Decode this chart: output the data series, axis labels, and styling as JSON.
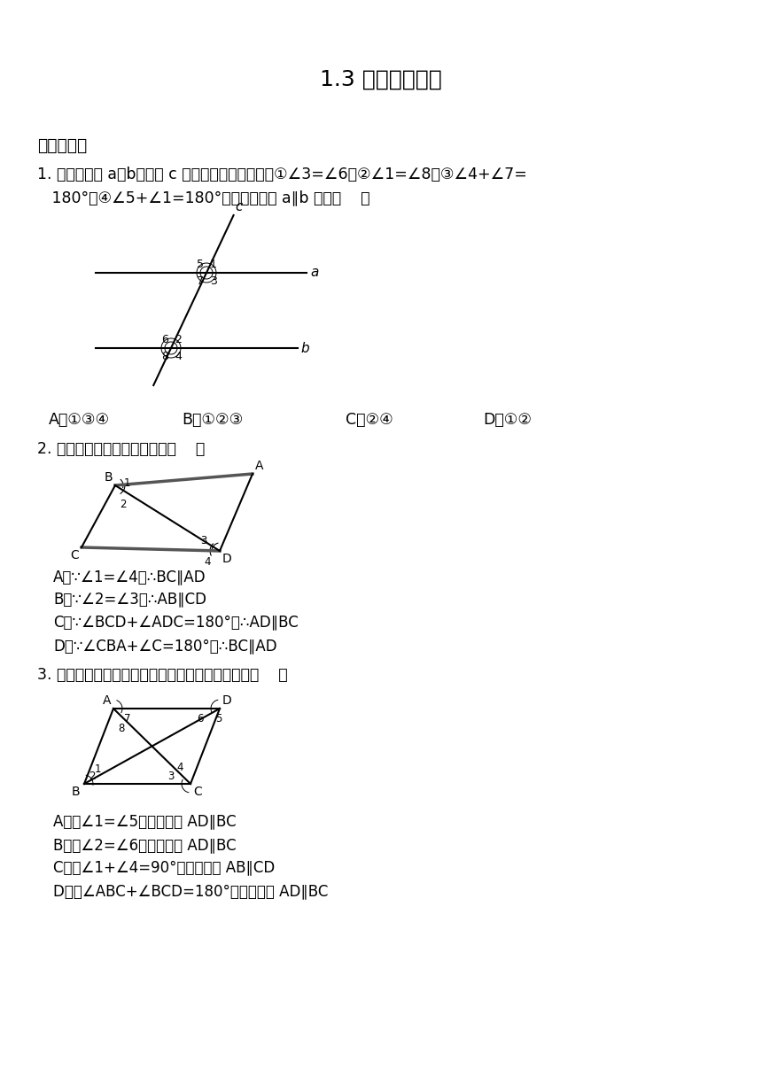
{
  "title": "1.3 平行线的判定",
  "section1": "一．选择题",
  "q1_line1": "1. 如图，直线 a、b被直线 c 所截，给出下列条件：①∠3=∠6；②∠1=∠8；③∠4+∠7=",
  "q1_line2": "   180°；④∠5+∠1=180°．其中能判断 a∥b 的是（    ）",
  "q1_opts": [
    "A．①③④",
    "B．①②③",
    "C．②④",
    "D．①②"
  ],
  "q2_line1": "2. 如图，下列推理中正确的是（    ）",
  "q2_opts": [
    "A．∵∠1=∠4，∴BC∥AD",
    "B．∵∠2=∠3，∴AB∥CD",
    "C．∵∠BCD+∠ADC=180°，∴AD∥BC",
    "D．∵∠CBA+∠C=180°，∴BC∥AD"
  ],
  "q3_line1": "3. 如图，由下列已知条件推出的结论中，正确的是（    ）",
  "q3_opts": [
    "A．由∠1=∠5，可以推出 AD∥BC",
    "B．由∠2=∠6，可以推出 AD∥BC",
    "C．由∠1+∠4=90°，可以推出 AB∥CD",
    "D．由∠ABC+∠BCD=180°，可以推出 AD∥BC"
  ],
  "bg_color": "#ffffff"
}
